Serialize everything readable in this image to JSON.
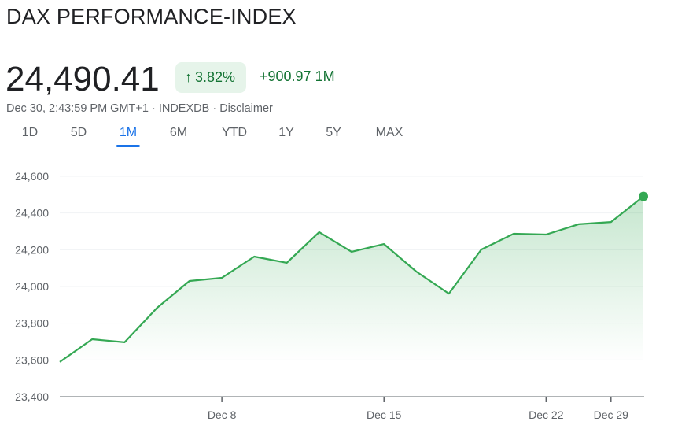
{
  "header": {
    "title": "DAX PERFORMANCE-INDEX",
    "price": "24,490.41",
    "change_percent": "3.82%",
    "change_icon": "arrow-up-icon",
    "change_value": "+900.97 1M",
    "timestamp": "Dec 30, 2:43:59 PM GMT+1",
    "source": "INDEXDB",
    "disclaimer": "Disclaimer",
    "separator": " · ",
    "up_color": "#137333"
  },
  "tabs": [
    {
      "label": "1D",
      "active": false
    },
    {
      "label": "5D",
      "active": false
    },
    {
      "label": "1M",
      "active": true
    },
    {
      "label": "6M",
      "active": false
    },
    {
      "label": "YTD",
      "active": false
    },
    {
      "label": "1Y",
      "active": false
    },
    {
      "label": "5Y",
      "active": false
    },
    {
      "label": "MAX",
      "active": false
    }
  ],
  "chart_data": {
    "type": "area",
    "x": [
      "Dec 1",
      "Dec 2",
      "Dec 3",
      "Dec 4",
      "Dec 5",
      "Dec 8",
      "Dec 9",
      "Dec 10",
      "Dec 11",
      "Dec 12",
      "Dec 15",
      "Dec 16",
      "Dec 17",
      "Dec 18",
      "Dec 19",
      "Dec 22",
      "Dec 23",
      "Dec 29",
      "Dec 30"
    ],
    "values": [
      23589,
      23713,
      23696,
      23884,
      24030,
      24047,
      24163,
      24129,
      24296,
      24189,
      24231,
      24081,
      23961,
      24201,
      24287,
      24283,
      24339,
      24351,
      24490.41
    ],
    "ylim": [
      23400,
      24600
    ],
    "y_ticks": [
      "24,600",
      "24,400",
      "24,200",
      "24,000",
      "23,800",
      "23,600",
      "23,400"
    ],
    "y_tick_values": [
      24600,
      24400,
      24200,
      24000,
      23800,
      23600,
      23400
    ],
    "x_ticks": [
      "Dec 8",
      "Dec 15",
      "Dec 22",
      "Dec 29"
    ],
    "grid": true,
    "line_color": "#34a853",
    "title": "",
    "xlabel": "",
    "ylabel": ""
  }
}
